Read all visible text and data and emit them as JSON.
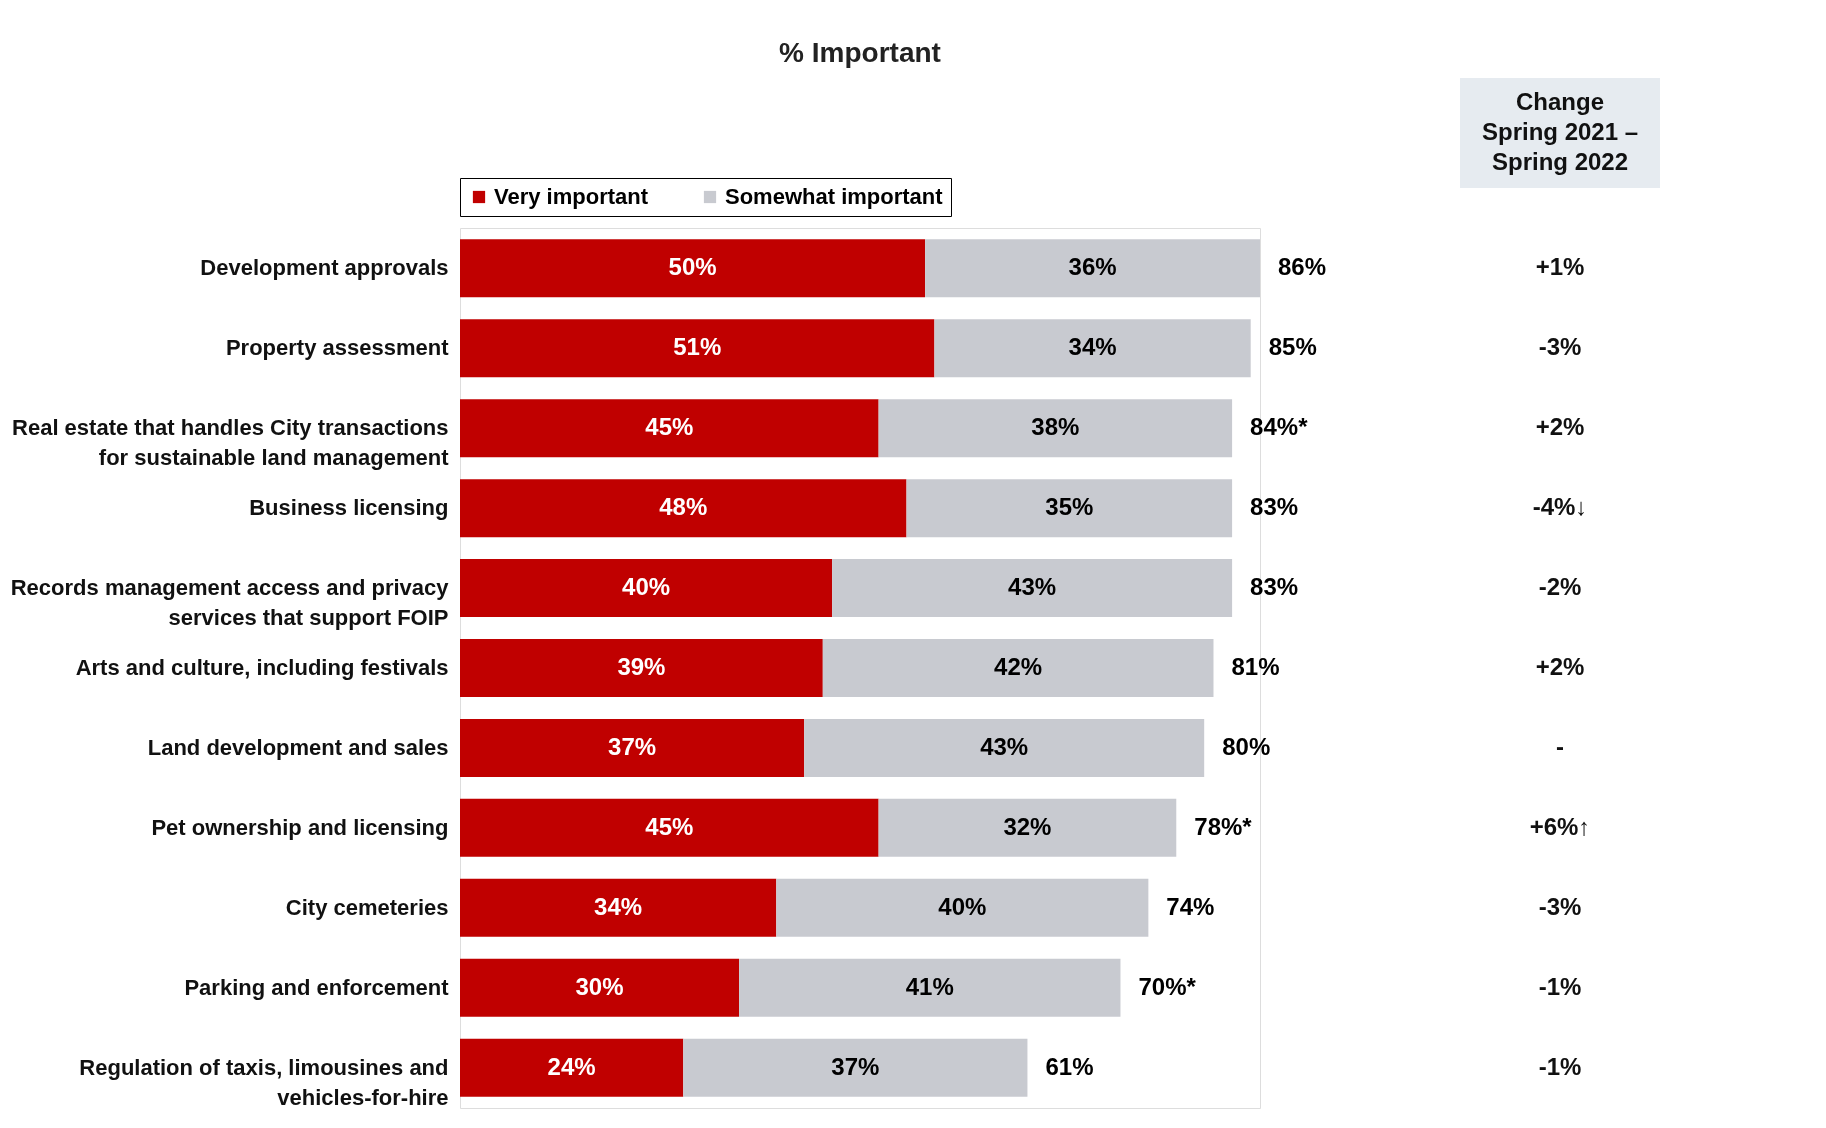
{
  "chart_data": {
    "type": "bar",
    "orientation": "horizontal",
    "stacked": true,
    "title": "% Important",
    "categories": [
      "Development approvals",
      "Property assessment",
      "Real estate that handles City transactions\nfor sustainable land management",
      "Business licensing",
      "Records management access and privacy\nservices that support FOIP",
      "Arts and culture, including festivals",
      "Land development and sales",
      "Pet ownership and licensing",
      "City cemeteries",
      "Parking and enforcement",
      "Regulation of taxis, limousines and\nvehicles-for-hire"
    ],
    "series": [
      {
        "name": "Very important",
        "color": "#c00000",
        "values": [
          50,
          51,
          45,
          48,
          40,
          39,
          37,
          45,
          34,
          30,
          24
        ],
        "value_labels": [
          "50%",
          "51%",
          "45%",
          "48%",
          "40%",
          "39%",
          "37%",
          "45%",
          "34%",
          "30%",
          "24%"
        ]
      },
      {
        "name": "Somewhat important",
        "color": "#c8cad0",
        "values": [
          36,
          34,
          38,
          35,
          43,
          42,
          43,
          32,
          40,
          41,
          37
        ],
        "value_labels": [
          "36%",
          "34%",
          "38%",
          "35%",
          "43%",
          "42%",
          "43%",
          "32%",
          "40%",
          "41%",
          "37%"
        ]
      }
    ],
    "totals": [
      "86%",
      "85%",
      "84%*",
      "83%",
      "83%",
      "81%",
      "80%",
      "78%*",
      "74%",
      "70%*",
      "61%"
    ],
    "annotations": [
      "Change\nSpring 2021 –\nSpring 2022",
      "+1%",
      "-3%",
      "+2%",
      "-4%↓",
      "-2%",
      "+2%",
      "-",
      "+6%↑",
      "-3%",
      "-1%",
      "-1%"
    ],
    "legend": "top",
    "grid": false,
    "tick_labels": "y"
  }
}
